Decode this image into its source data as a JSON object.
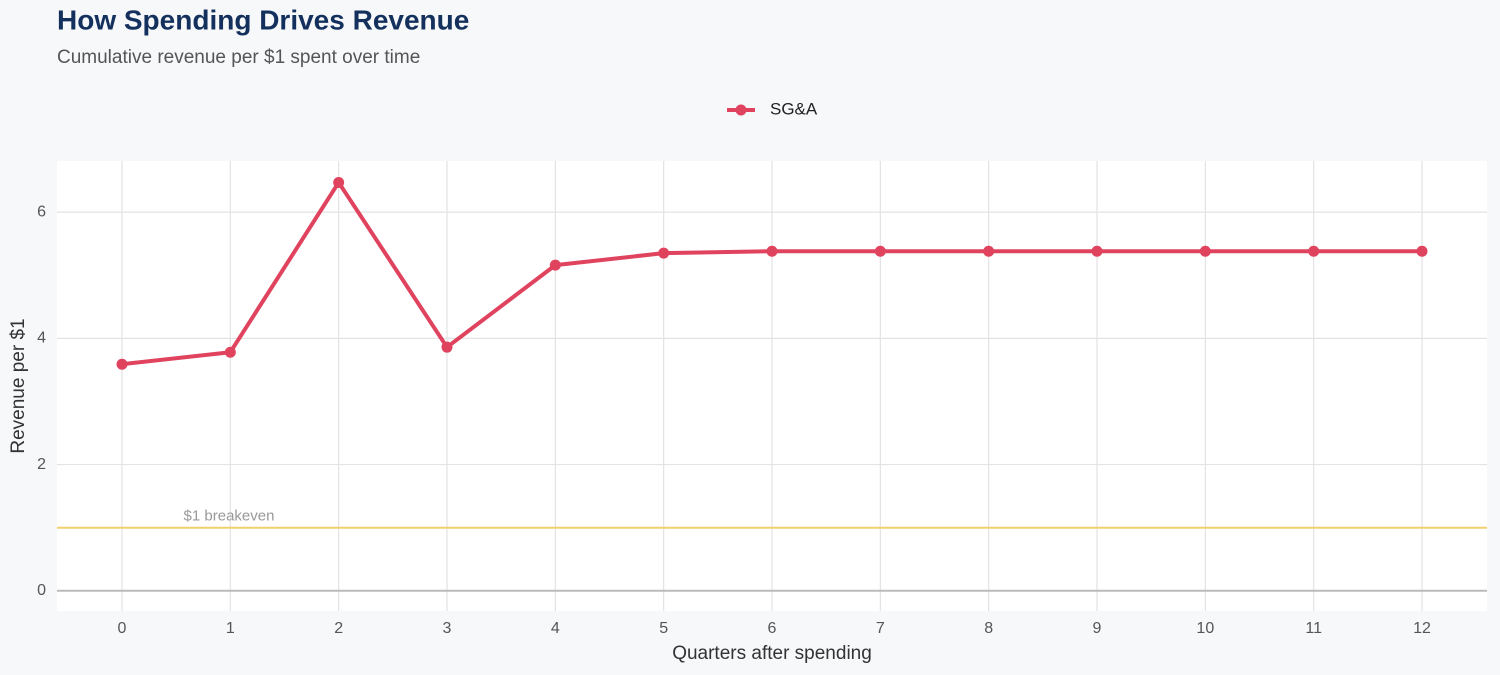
{
  "chart_data": {
    "type": "line",
    "title": "How Spending Drives Revenue",
    "subtitle": "Cumulative revenue per $1 spent over time",
    "x_label": "Quarters after spending",
    "y_label": "Revenue per $1",
    "x": [
      0,
      1,
      2,
      3,
      4,
      5,
      6,
      7,
      8,
      9,
      10,
      11,
      12
    ],
    "series": [
      {
        "name": "SG&A",
        "color": "#e0435e",
        "values": [
          3.59,
          3.78,
          6.47,
          3.86,
          5.16,
          5.35,
          5.38,
          5.38,
          5.38,
          5.38,
          5.38,
          5.38,
          5.38
        ]
      }
    ],
    "xlim": [
      -0.6,
      12.6
    ],
    "xticks": [
      0,
      1,
      2,
      3,
      4,
      5,
      6,
      7,
      8,
      9,
      10,
      11,
      12
    ],
    "ylim": [
      -0.32,
      6.81
    ],
    "yticks": [
      0,
      2,
      4,
      6
    ],
    "grid": true,
    "legend": "top",
    "reference_line": {
      "value": 1,
      "label": "$1 breakeven",
      "color": "#f2d06b"
    }
  }
}
